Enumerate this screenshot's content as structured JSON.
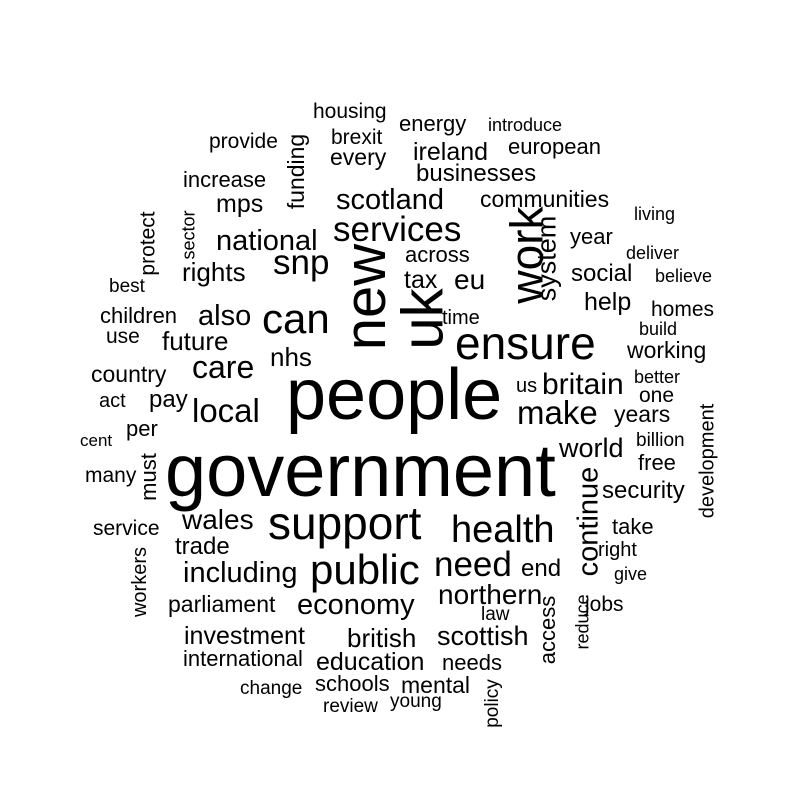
{
  "words": [
    "housing",
    "introduce",
    "energy",
    "brexit",
    "provide",
    "european",
    "ireland",
    "funding",
    "every",
    "businesses",
    "increase",
    "communities",
    "living",
    "scotland",
    "mps",
    "sector",
    "protect",
    "services",
    "year",
    "national",
    "across",
    "deliver",
    "snp",
    "system",
    "work",
    "eu",
    "tax",
    "rights",
    "believe",
    "best",
    "social",
    "new",
    "uk",
    "help",
    "homes",
    "also",
    "children",
    "can",
    "time",
    "build",
    "use",
    "ensure",
    "future",
    "working",
    "care",
    "nhs",
    "country",
    "better",
    "us",
    "britain",
    "one",
    "people",
    "act",
    "pay",
    "local",
    "make",
    "years",
    "development",
    "per",
    "billion",
    "cent",
    "world",
    "government",
    "must",
    "free",
    "many",
    "continue",
    "security",
    "wales",
    "support",
    "take",
    "service",
    "health",
    "trade",
    "right",
    "workers",
    "including",
    "public",
    "need",
    "end",
    "give",
    "parliament",
    "economy",
    "northern",
    "law",
    "access",
    "jobs",
    "reduce",
    "investment",
    "british",
    "scottish",
    "international",
    "education",
    "needs",
    "change",
    "schools",
    "mental",
    "policy",
    "review",
    "young"
  ]
}
